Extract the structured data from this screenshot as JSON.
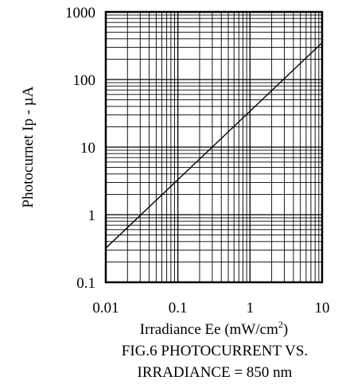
{
  "chart_data": {
    "type": "line",
    "title": "",
    "xlabel_main": "Irradiance Ee (mW/cm",
    "xlabel_sup": "2",
    "xlabel_end": ")",
    "ylabel": "Photocurnet   Ip - µA",
    "x_scale": "log",
    "y_scale": "log",
    "xlim": [
      0.01,
      10
    ],
    "ylim": [
      0.1,
      1000
    ],
    "x_ticks": [
      0.01,
      0.1,
      1,
      10
    ],
    "x_tick_labels": [
      "0.01",
      "0.1",
      "1",
      "10"
    ],
    "y_ticks": [
      0.1,
      1,
      10,
      100,
      1000
    ],
    "y_tick_labels": [
      "0.1",
      "1",
      "10",
      "100",
      "1000"
    ],
    "grid": true,
    "series": [
      {
        "x": [
          0.01,
          10
        ],
        "y": [
          0.32,
          350
        ]
      }
    ]
  },
  "caption": {
    "line1": "FIG.6 PHOTOCURRENT VS.",
    "line2": "IRRADIANCE = 850 nm"
  }
}
